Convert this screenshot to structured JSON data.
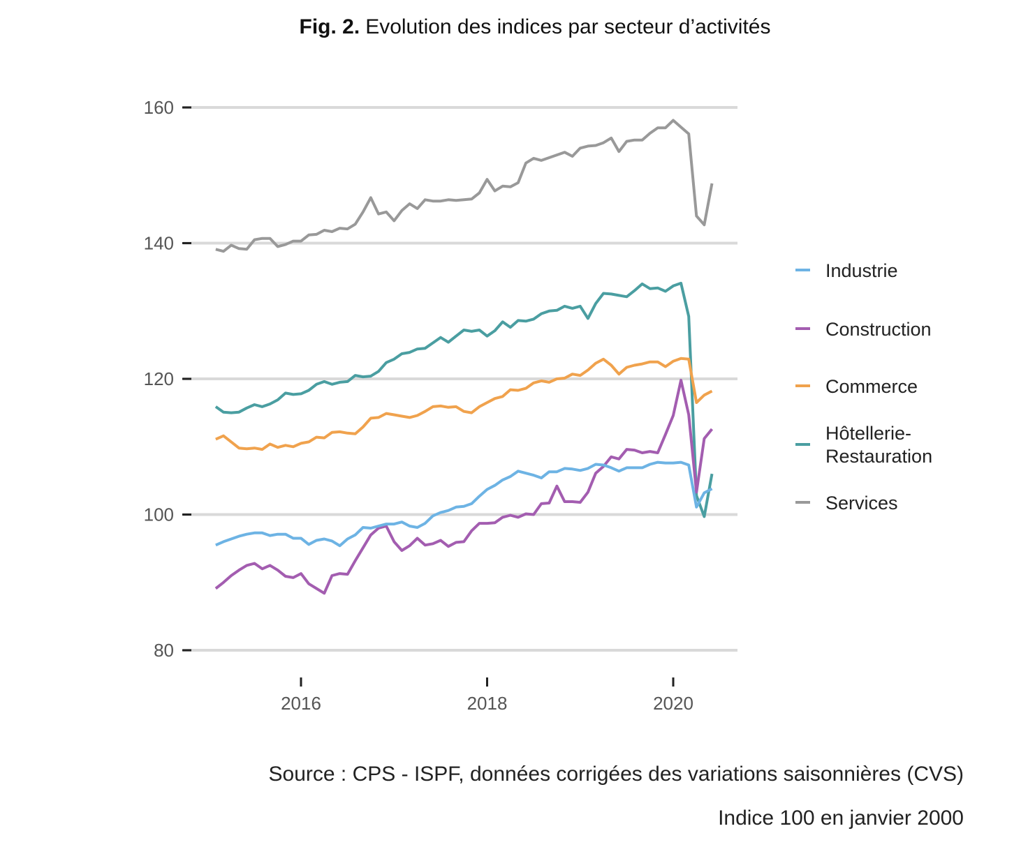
{
  "chart_data": {
    "type": "line",
    "title_prefix": "Fig. 2.",
    "title": "Evolution des indices par secteur d’activités",
    "xlabel": "",
    "ylabel": "",
    "ylim": [
      80,
      160
    ],
    "yticks": [
      "80",
      "100",
      "120",
      "140",
      "160"
    ],
    "xticks": [
      "2016",
      "2018",
      "2020"
    ],
    "grid": "horizontal",
    "legend_position": "right",
    "x": [
      "2015-02",
      "2015-03",
      "2015-04",
      "2015-05",
      "2015-06",
      "2015-07",
      "2015-08",
      "2015-09",
      "2015-10",
      "2015-11",
      "2015-12",
      "2016-01",
      "2016-02",
      "2016-03",
      "2016-04",
      "2016-05",
      "2016-06",
      "2016-07",
      "2016-08",
      "2016-09",
      "2016-10",
      "2016-11",
      "2016-12",
      "2017-01",
      "2017-02",
      "2017-03",
      "2017-04",
      "2017-05",
      "2017-06",
      "2017-07",
      "2017-08",
      "2017-09",
      "2017-10",
      "2017-11",
      "2017-12",
      "2018-01",
      "2018-02",
      "2018-03",
      "2018-04",
      "2018-05",
      "2018-06",
      "2018-07",
      "2018-08",
      "2018-09",
      "2018-10",
      "2018-11",
      "2018-12",
      "2019-01",
      "2019-02",
      "2019-03",
      "2019-04",
      "2019-05",
      "2019-06",
      "2019-07",
      "2019-08",
      "2019-09",
      "2019-10",
      "2019-11",
      "2019-12",
      "2020-01",
      "2020-02",
      "2020-03",
      "2020-04",
      "2020-05",
      "2020-06"
    ],
    "series": [
      {
        "name": "Industrie",
        "color": "#6db3e4",
        "values": [
          95.5,
          96.0,
          96.4,
          96.8,
          97.1,
          97.3,
          97.3,
          96.9,
          97.1,
          97.1,
          96.5,
          96.5,
          95.6,
          96.2,
          96.4,
          96.1,
          95.4,
          96.4,
          97.0,
          98.1,
          98.0,
          98.3,
          98.6,
          98.6,
          98.9,
          98.3,
          98.1,
          98.7,
          99.8,
          100.3,
          100.6,
          101.1,
          101.2,
          101.6,
          102.7,
          103.7,
          104.3,
          105.1,
          105.6,
          106.4,
          106.1,
          105.8,
          105.4,
          106.3,
          106.3,
          106.8,
          106.7,
          106.5,
          106.8,
          107.4,
          107.3,
          106.9,
          106.4,
          106.9,
          106.9,
          106.9,
          107.4,
          107.7,
          107.6,
          107.6,
          107.7,
          107.3,
          101.1,
          103.2,
          103.8
        ]
      },
      {
        "name": "Construction",
        "color": "#a35db0",
        "values": [
          89.1,
          90.0,
          91.0,
          91.8,
          92.5,
          92.8,
          92.0,
          92.5,
          91.8,
          90.9,
          90.7,
          91.3,
          89.8,
          89.1,
          88.4,
          91.0,
          91.3,
          91.2,
          93.2,
          95.1,
          97.0,
          98.0,
          98.3,
          96.0,
          94.7,
          95.4,
          96.5,
          95.5,
          95.7,
          96.2,
          95.3,
          95.9,
          96.0,
          97.6,
          98.7,
          98.7,
          98.8,
          99.6,
          99.9,
          99.6,
          100.1,
          100.0,
          101.6,
          101.7,
          104.2,
          101.9,
          101.9,
          101.8,
          103.3,
          106.1,
          107.1,
          108.5,
          108.2,
          109.6,
          109.5,
          109.1,
          109.3,
          109.1,
          111.8,
          114.6,
          119.8,
          114.7,
          103.3,
          111.2,
          112.6
        ]
      },
      {
        "name": "Commerce",
        "color": "#f0a24d",
        "values": [
          111.1,
          111.6,
          110.7,
          109.8,
          109.7,
          109.8,
          109.6,
          110.4,
          109.9,
          110.2,
          110.0,
          110.5,
          110.7,
          111.4,
          111.3,
          112.1,
          112.2,
          112.0,
          111.9,
          112.9,
          114.2,
          114.3,
          114.9,
          114.7,
          114.5,
          114.3,
          114.6,
          115.2,
          115.9,
          116.0,
          115.8,
          115.9,
          115.2,
          115.0,
          115.9,
          116.5,
          117.1,
          117.4,
          118.4,
          118.3,
          118.6,
          119.4,
          119.7,
          119.5,
          120.0,
          120.1,
          120.7,
          120.5,
          121.3,
          122.3,
          122.9,
          122.0,
          120.7,
          121.7,
          122.0,
          122.2,
          122.5,
          122.5,
          121.8,
          122.6,
          123.0,
          122.9,
          116.5,
          117.6,
          118.2
        ]
      },
      {
        "name": "Hôtellerie-Restauration",
        "name_lines": [
          "Hôtellerie-",
          "Restauration"
        ],
        "color": "#4a9ea1",
        "values": [
          115.9,
          115.1,
          115.0,
          115.1,
          115.7,
          116.2,
          115.9,
          116.3,
          116.9,
          117.9,
          117.7,
          117.8,
          118.3,
          119.2,
          119.6,
          119.2,
          119.5,
          119.6,
          120.5,
          120.3,
          120.4,
          121.1,
          122.4,
          122.9,
          123.7,
          123.9,
          124.4,
          124.5,
          125.3,
          126.1,
          125.4,
          126.3,
          127.2,
          127.0,
          127.2,
          126.3,
          127.1,
          128.4,
          127.6,
          128.6,
          128.5,
          128.8,
          129.6,
          130.0,
          130.1,
          130.7,
          130.4,
          130.7,
          128.9,
          131.1,
          132.6,
          132.5,
          132.3,
          132.1,
          133.0,
          134.0,
          133.3,
          133.4,
          132.9,
          133.7,
          134.1,
          129.2,
          102.8,
          99.7,
          106.0
        ]
      },
      {
        "name": "Services",
        "color": "#999999",
        "values": [
          139.1,
          138.8,
          139.7,
          139.2,
          139.1,
          140.5,
          140.7,
          140.7,
          139.5,
          139.8,
          140.3,
          140.3,
          141.2,
          141.3,
          141.9,
          141.7,
          142.2,
          142.1,
          142.8,
          144.6,
          146.7,
          144.3,
          144.6,
          143.3,
          144.8,
          145.8,
          145.1,
          146.4,
          146.2,
          146.2,
          146.4,
          146.3,
          146.4,
          146.5,
          147.4,
          149.4,
          147.7,
          148.4,
          148.3,
          148.9,
          151.8,
          152.5,
          152.2,
          152.6,
          153.0,
          153.4,
          152.8,
          154.0,
          154.3,
          154.4,
          154.8,
          155.5,
          153.5,
          155.0,
          155.2,
          155.2,
          156.2,
          157.0,
          157.0,
          158.1,
          157.1,
          156.1,
          144.0,
          142.7,
          148.8
        ]
      }
    ],
    "source": "Source : CPS - ISPF, données corrigées des variations saisonnières (CVS)",
    "note": "Indice 100 en janvier 2000"
  }
}
